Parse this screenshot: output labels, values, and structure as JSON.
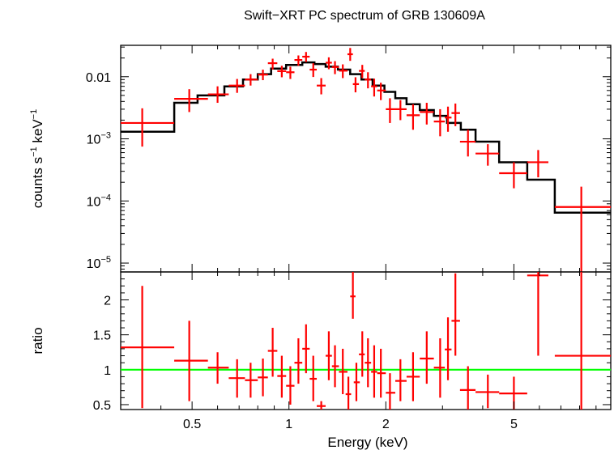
{
  "chart_data": {
    "type": "scatter",
    "title": "Swift−XRT PC spectrum of GRB 130609A",
    "xlabel": "Energy (keV)",
    "x_scale": "log",
    "xlim": [
      0.3,
      10.0
    ],
    "x_ticks": [
      {
        "value": 0.5,
        "label": "0.5"
      },
      {
        "value": 1,
        "label": "1"
      },
      {
        "value": 2,
        "label": "2"
      },
      {
        "value": 5,
        "label": "5"
      }
    ],
    "panels": [
      {
        "name": "spectrum",
        "ylabel": {
          "base": "counts s",
          "exp1": "−1",
          "mid": " keV",
          "exp2": "−1"
        },
        "y_scale": "log",
        "ylim": [
          7.2e-06,
          0.032
        ],
        "y_ticks": [
          {
            "value": 0.01,
            "label": "0.01"
          },
          {
            "value": 0.001,
            "mant": "10",
            "exp": "−3"
          },
          {
            "value": 0.0001,
            "mant": "10",
            "exp": "−4"
          },
          {
            "value": 1e-05,
            "mant": "10",
            "exp": "−5"
          }
        ],
        "series": [
          {
            "kind": "errorbars",
            "color": "#ff0000",
            "points": [
              {
                "x": 0.35,
                "xlo": 0.3,
                "xhi": 0.44,
                "y": 0.0018,
                "ylo": 0.00075,
                "yhi": 0.0031
              },
              {
                "x": 0.49,
                "xlo": 0.44,
                "xhi": 0.56,
                "y": 0.0044,
                "ylo": 0.0027,
                "yhi": 0.0063
              },
              {
                "x": 0.6,
                "xlo": 0.56,
                "xhi": 0.65,
                "y": 0.0052,
                "ylo": 0.0038,
                "yhi": 0.007
              },
              {
                "x": 0.69,
                "xlo": 0.65,
                "xhi": 0.73,
                "y": 0.0072,
                "ylo": 0.0055,
                "yhi": 0.0092
              },
              {
                "x": 0.76,
                "xlo": 0.73,
                "xhi": 0.8,
                "y": 0.009,
                "ylo": 0.0072,
                "yhi": 0.011
              },
              {
                "x": 0.83,
                "xlo": 0.8,
                "xhi": 0.86,
                "y": 0.0108,
                "ylo": 0.0088,
                "yhi": 0.013
              },
              {
                "x": 0.89,
                "xlo": 0.86,
                "xhi": 0.92,
                "y": 0.0165,
                "ylo": 0.013,
                "yhi": 0.0195
              },
              {
                "x": 0.95,
                "xlo": 0.92,
                "xhi": 0.98,
                "y": 0.0123,
                "ylo": 0.0098,
                "yhi": 0.015
              },
              {
                "x": 1.01,
                "xlo": 0.98,
                "xhi": 1.04,
                "y": 0.0118,
                "ylo": 0.0092,
                "yhi": 0.0145
              },
              {
                "x": 1.07,
                "xlo": 1.04,
                "xhi": 1.1,
                "y": 0.0186,
                "ylo": 0.015,
                "yhi": 0.022
              },
              {
                "x": 1.13,
                "xlo": 1.1,
                "xhi": 1.16,
                "y": 0.021,
                "ylo": 0.0172,
                "yhi": 0.025
              },
              {
                "x": 1.19,
                "xlo": 1.16,
                "xhi": 1.22,
                "y": 0.013,
                "ylo": 0.0099,
                "yhi": 0.0165
              },
              {
                "x": 1.26,
                "xlo": 1.22,
                "xhi": 1.3,
                "y": 0.0072,
                "ylo": 0.0052,
                "yhi": 0.0095
              },
              {
                "x": 1.33,
                "xlo": 1.3,
                "xhi": 1.36,
                "y": 0.0168,
                "ylo": 0.0132,
                "yhi": 0.0205
              },
              {
                "x": 1.39,
                "xlo": 1.36,
                "xhi": 1.43,
                "y": 0.0143,
                "ylo": 0.011,
                "yhi": 0.0178
              },
              {
                "x": 1.47,
                "xlo": 1.43,
                "xhi": 1.52,
                "y": 0.0125,
                "ylo": 0.0095,
                "yhi": 0.0158
              },
              {
                "x": 1.55,
                "xlo": 1.52,
                "xhi": 1.58,
                "y": 0.023,
                "ylo": 0.018,
                "yhi": 0.029
              },
              {
                "x": 1.61,
                "xlo": 1.58,
                "xhi": 1.65,
                "y": 0.0076,
                "ylo": 0.0056,
                "yhi": 0.0098
              },
              {
                "x": 1.69,
                "xlo": 1.65,
                "xhi": 1.72,
                "y": 0.0124,
                "ylo": 0.0095,
                "yhi": 0.0155
              },
              {
                "x": 1.76,
                "xlo": 1.72,
                "xhi": 1.8,
                "y": 0.009,
                "ylo": 0.0065,
                "yhi": 0.0118
              },
              {
                "x": 1.84,
                "xlo": 1.8,
                "xhi": 1.88,
                "y": 0.007,
                "ylo": 0.0048,
                "yhi": 0.0093
              },
              {
                "x": 1.93,
                "xlo": 1.88,
                "xhi": 2.0,
                "y": 0.006,
                "ylo": 0.0042,
                "yhi": 0.008
              },
              {
                "x": 2.06,
                "xlo": 2.0,
                "xhi": 2.14,
                "y": 0.003,
                "ylo": 0.0018,
                "yhi": 0.0045
              },
              {
                "x": 2.22,
                "xlo": 2.14,
                "xhi": 2.32,
                "y": 0.003,
                "ylo": 0.002,
                "yhi": 0.0042
              },
              {
                "x": 2.43,
                "xlo": 2.32,
                "xhi": 2.55,
                "y": 0.0024,
                "ylo": 0.0014,
                "yhi": 0.0036
              },
              {
                "x": 2.68,
                "xlo": 2.55,
                "xhi": 2.82,
                "y": 0.0027,
                "ylo": 0.0017,
                "yhi": 0.0038
              },
              {
                "x": 2.95,
                "xlo": 2.82,
                "xhi": 3.05,
                "y": 0.0019,
                "ylo": 0.0011,
                "yhi": 0.003
              },
              {
                "x": 3.12,
                "xlo": 3.05,
                "xhi": 3.2,
                "y": 0.0022,
                "ylo": 0.0013,
                "yhi": 0.0033
              },
              {
                "x": 3.29,
                "xlo": 3.2,
                "xhi": 3.4,
                "y": 0.0026,
                "ylo": 0.0016,
                "yhi": 0.0037
              },
              {
                "x": 3.6,
                "xlo": 3.4,
                "xhi": 3.8,
                "y": 0.0009,
                "ylo": 0.00052,
                "yhi": 0.0014
              },
              {
                "x": 4.15,
                "xlo": 3.8,
                "xhi": 4.5,
                "y": 0.00058,
                "ylo": 0.00037,
                "yhi": 0.00082
              },
              {
                "x": 5.0,
                "xlo": 4.5,
                "xhi": 5.5,
                "y": 0.00028,
                "ylo": 0.00016,
                "yhi": 0.00042
              },
              {
                "x": 5.95,
                "xlo": 5.5,
                "xhi": 6.4,
                "y": 0.00042,
                "ylo": 0.00024,
                "yhi": 0.00066
              },
              {
                "x": 8.1,
                "xlo": 6.7,
                "xhi": 10.0,
                "y": 8e-05,
                "ylo": 7.2e-06,
                "yhi": 0.00017
              }
            ]
          },
          {
            "kind": "model-step",
            "color": "#000000",
            "edges": [
              0.3,
              0.44,
              0.52,
              0.63,
              0.72,
              0.8,
              0.88,
              0.98,
              1.1,
              1.2,
              1.3,
              1.42,
              1.55,
              1.68,
              1.82,
              1.98,
              2.14,
              2.32,
              2.55,
              2.82,
              3.1,
              3.42,
              3.8,
              4.5,
              5.5,
              6.7,
              10.0
            ],
            "values": [
              0.0013,
              0.0038,
              0.005,
              0.007,
              0.009,
              0.011,
              0.0135,
              0.0155,
              0.017,
              0.016,
              0.0145,
              0.013,
              0.011,
              0.009,
              0.0072,
              0.0057,
              0.0045,
              0.0036,
              0.0029,
              0.00235,
              0.0018,
              0.0014,
              0.0009,
              0.00042,
              0.00022,
              6.5e-05
            ]
          }
        ]
      },
      {
        "name": "ratio",
        "ylabel": "ratio",
        "y_scale": "linear",
        "ylim": [
          0.43,
          2.4
        ],
        "y_ticks": [
          {
            "value": 0.5,
            "label": "0.5"
          },
          {
            "value": 1,
            "label": "1"
          },
          {
            "value": 1.5,
            "label": "1.5"
          },
          {
            "value": 2,
            "label": "2"
          }
        ],
        "reference_line": {
          "y": 1,
          "color": "#00ff00"
        },
        "series": [
          {
            "kind": "errorbars",
            "color": "#ff0000",
            "points": [
              {
                "x": 0.35,
                "xlo": 0.3,
                "xhi": 0.44,
                "y": 1.32,
                "ylo": 0.45,
                "yhi": 2.2
              },
              {
                "x": 0.49,
                "xlo": 0.44,
                "xhi": 0.56,
                "y": 1.13,
                "ylo": 0.55,
                "yhi": 1.7
              },
              {
                "x": 0.6,
                "xlo": 0.56,
                "xhi": 0.65,
                "y": 1.03,
                "ylo": 0.8,
                "yhi": 1.25
              },
              {
                "x": 0.69,
                "xlo": 0.65,
                "xhi": 0.73,
                "y": 0.88,
                "ylo": 0.6,
                "yhi": 1.15
              },
              {
                "x": 0.76,
                "xlo": 0.73,
                "xhi": 0.8,
                "y": 0.85,
                "ylo": 0.6,
                "yhi": 1.1
              },
              {
                "x": 0.83,
                "xlo": 0.8,
                "xhi": 0.86,
                "y": 0.89,
                "ylo": 0.62,
                "yhi": 1.16
              },
              {
                "x": 0.89,
                "xlo": 0.86,
                "xhi": 0.92,
                "y": 1.27,
                "ylo": 0.9,
                "yhi": 1.6
              },
              {
                "x": 0.95,
                "xlo": 0.92,
                "xhi": 0.98,
                "y": 0.91,
                "ylo": 0.6,
                "yhi": 1.2
              },
              {
                "x": 1.01,
                "xlo": 0.98,
                "xhi": 1.04,
                "y": 0.77,
                "ylo": 0.5,
                "yhi": 1.05
              },
              {
                "x": 1.07,
                "xlo": 1.04,
                "xhi": 1.1,
                "y": 1.1,
                "ylo": 0.8,
                "yhi": 1.45
              },
              {
                "x": 1.13,
                "xlo": 1.1,
                "xhi": 1.16,
                "y": 1.3,
                "ylo": 0.95,
                "yhi": 1.65
              },
              {
                "x": 1.19,
                "xlo": 1.16,
                "xhi": 1.22,
                "y": 0.87,
                "ylo": 0.55,
                "yhi": 1.2
              },
              {
                "x": 1.26,
                "xlo": 1.22,
                "xhi": 1.3,
                "y": 0.48,
                "ylo": 0.43,
                "yhi": 0.55
              },
              {
                "x": 1.33,
                "xlo": 1.3,
                "xhi": 1.36,
                "y": 1.2,
                "ylo": 0.85,
                "yhi": 1.55
              },
              {
                "x": 1.39,
                "xlo": 1.36,
                "xhi": 1.43,
                "y": 1.05,
                "ylo": 0.75,
                "yhi": 1.35
              },
              {
                "x": 1.47,
                "xlo": 1.43,
                "xhi": 1.52,
                "y": 0.97,
                "ylo": 0.65,
                "yhi": 1.3
              },
              {
                "x": 1.53,
                "xlo": 1.5,
                "xhi": 1.56,
                "y": 0.65,
                "ylo": 0.43,
                "yhi": 0.9
              },
              {
                "x": 1.58,
                "xlo": 1.55,
                "xhi": 1.61,
                "y": 2.05,
                "ylo": 1.73,
                "yhi": 2.42
              },
              {
                "x": 1.62,
                "xlo": 1.59,
                "xhi": 1.66,
                "y": 0.82,
                "ylo": 0.55,
                "yhi": 1.1
              },
              {
                "x": 1.69,
                "xlo": 1.65,
                "xhi": 1.72,
                "y": 1.22,
                "ylo": 0.9,
                "yhi": 1.55
              },
              {
                "x": 1.76,
                "xlo": 1.72,
                "xhi": 1.8,
                "y": 1.1,
                "ylo": 0.75,
                "yhi": 1.45
              },
              {
                "x": 1.84,
                "xlo": 1.8,
                "xhi": 1.88,
                "y": 0.97,
                "ylo": 0.6,
                "yhi": 1.35
              },
              {
                "x": 1.93,
                "xlo": 1.88,
                "xhi": 2.0,
                "y": 0.95,
                "ylo": 0.6,
                "yhi": 1.3
              },
              {
                "x": 2.06,
                "xlo": 2.0,
                "xhi": 2.14,
                "y": 0.67,
                "ylo": 0.43,
                "yhi": 0.95
              },
              {
                "x": 2.22,
                "xlo": 2.14,
                "xhi": 2.32,
                "y": 0.84,
                "ylo": 0.55,
                "yhi": 1.15
              },
              {
                "x": 2.43,
                "xlo": 2.32,
                "xhi": 2.55,
                "y": 0.9,
                "ylo": 0.55,
                "yhi": 1.25
              },
              {
                "x": 2.68,
                "xlo": 2.55,
                "xhi": 2.82,
                "y": 1.16,
                "ylo": 0.8,
                "yhi": 1.55
              },
              {
                "x": 2.95,
                "xlo": 2.82,
                "xhi": 3.05,
                "y": 1.03,
                "ylo": 0.6,
                "yhi": 1.45
              },
              {
                "x": 3.12,
                "xlo": 3.05,
                "xhi": 3.2,
                "y": 1.29,
                "ylo": 0.85,
                "yhi": 1.75
              },
              {
                "x": 3.29,
                "xlo": 3.2,
                "xhi": 3.4,
                "y": 1.7,
                "ylo": 1.2,
                "yhi": 2.38
              },
              {
                "x": 3.6,
                "xlo": 3.4,
                "xhi": 3.8,
                "y": 0.71,
                "ylo": 0.43,
                "yhi": 1.05
              },
              {
                "x": 4.15,
                "xlo": 3.8,
                "xhi": 4.5,
                "y": 0.68,
                "ylo": 0.45,
                "yhi": 0.93
              },
              {
                "x": 5.0,
                "xlo": 4.5,
                "xhi": 5.5,
                "y": 0.66,
                "ylo": 0.43,
                "yhi": 0.9
              },
              {
                "x": 5.95,
                "xlo": 5.5,
                "xhi": 6.4,
                "y": 2.35,
                "ylo": 1.2,
                "yhi": 2.4
              },
              {
                "x": 8.1,
                "xlo": 6.7,
                "xhi": 10.0,
                "y": 1.2,
                "ylo": 0.43,
                "yhi": 2.4
              }
            ]
          }
        ]
      }
    ]
  }
}
